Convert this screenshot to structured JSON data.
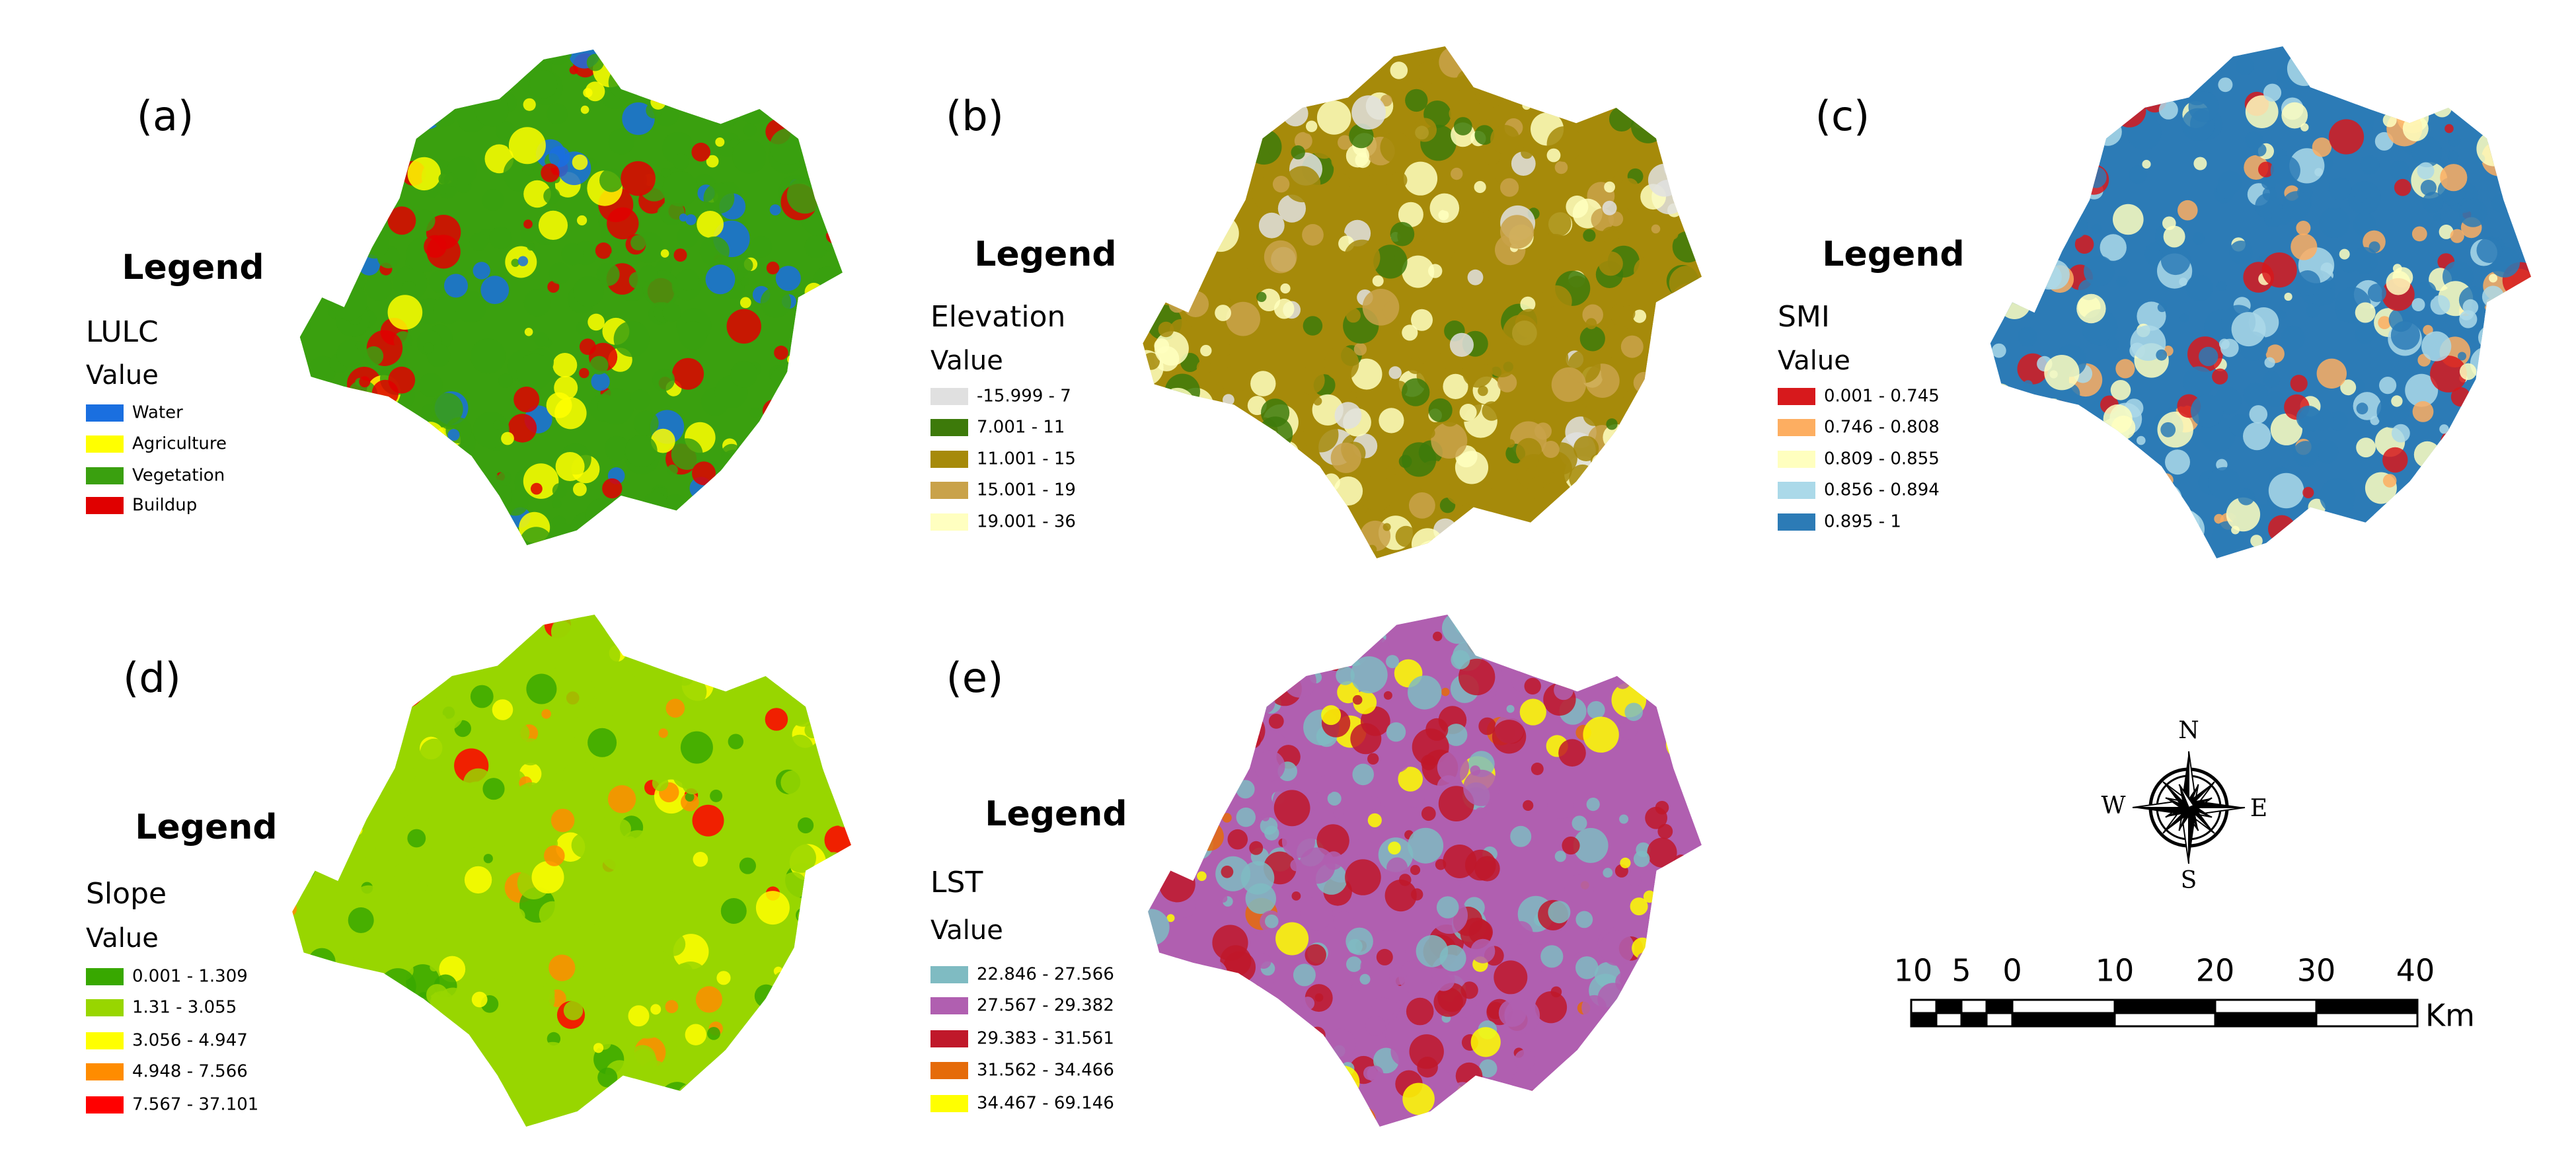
{
  "panels": [
    {
      "label": "(a)",
      "legend_title": "Legend",
      "layer": "LULC",
      "value_heading": "Value",
      "items": [
        {
          "label": "Water",
          "color": "#1a6fe0"
        },
        {
          "label": "Agriculture",
          "color": "#ffff00"
        },
        {
          "label": "Vegetation",
          "color": "#3aa00f"
        },
        {
          "label": "Buildup",
          "color": "#e00000"
        }
      ]
    },
    {
      "label": "(b)",
      "legend_title": "Legend",
      "layer": "Elevation",
      "value_heading": "Value",
      "items": [
        {
          "label": "-15.999 - 7",
          "color": "#e0e0e0"
        },
        {
          "label": "7.001 - 11",
          "color": "#3d7a0a"
        },
        {
          "label": "11.001 - 15",
          "color": "#a68a0a"
        },
        {
          "label": "15.001 - 19",
          "color": "#c9a24a"
        },
        {
          "label": "19.001 - 36",
          "color": "#ffffc0"
        }
      ]
    },
    {
      "label": "(c)",
      "legend_title": "Legend",
      "layer": "SMI",
      "value_heading": "Value",
      "items": [
        {
          "label": "0.001 - 0.745",
          "color": "#d7191c"
        },
        {
          "label": "0.746 - 0.808",
          "color": "#fdae61"
        },
        {
          "label": "0.809 - 0.855",
          "color": "#ffffbf"
        },
        {
          "label": "0.856 - 0.894",
          "color": "#abd9e9"
        },
        {
          "label": "0.895 - 1",
          "color": "#2c7bb6"
        }
      ]
    },
    {
      "label": "(d)",
      "legend_title": "Legend",
      "layer": "Slope",
      "value_heading": "Value",
      "items": [
        {
          "label": "0.001 - 1.309",
          "color": "#38a800"
        },
        {
          "label": "1.31 - 3.055",
          "color": "#98d600"
        },
        {
          "label": "3.056 - 4.947",
          "color": "#ffff00"
        },
        {
          "label": "4.948 - 7.566",
          "color": "#ff8c00"
        },
        {
          "label": "7.567 - 37.101",
          "color": "#ff0000"
        }
      ]
    },
    {
      "label": "(e)",
      "legend_title": "Legend",
      "layer": "LST",
      "value_heading": "Value",
      "items": [
        {
          "label": "22.846 - 27.566",
          "color": "#7fbbc2"
        },
        {
          "label": "27.567 - 29.382",
          "color": "#b05fb0"
        },
        {
          "label": "29.383 - 31.561",
          "color": "#c0182a"
        },
        {
          "label": "31.562 - 34.466",
          "color": "#e56b0a"
        },
        {
          "label": "34.467 - 69.146",
          "color": "#ffff00"
        }
      ]
    }
  ],
  "compass": {
    "north": "N",
    "south": "S",
    "east": "E",
    "west": "W"
  },
  "scale_bar": {
    "labels": [
      "10",
      "5",
      "0",
      "10",
      "20",
      "30",
      "40"
    ],
    "unit": "Km"
  }
}
